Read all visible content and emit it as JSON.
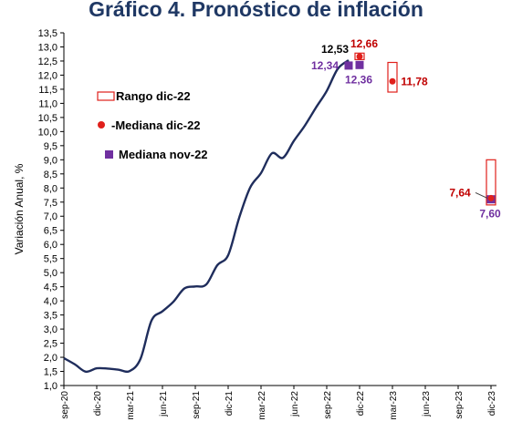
{
  "chart_data": {
    "type": "line",
    "title": "Gráfico 4. Pronóstico de inflación",
    "ylabel": "Variación Anual, %",
    "ylim": [
      1.0,
      13.5
    ],
    "yticks": [
      "1,0",
      "1,5",
      "2,0",
      "2,5",
      "3,0",
      "3,5",
      "4,0",
      "4,5",
      "5,0",
      "5,5",
      "6,0",
      "6,5",
      "7,0",
      "7,5",
      "8,0",
      "8,5",
      "9,0",
      "9,5",
      "10,0",
      "10,5",
      "11,0",
      "11,5",
      "12,0",
      "12,5",
      "13,0",
      "13,5"
    ],
    "xticks": [
      "sep-20",
      "dic-20",
      "mar-21",
      "jun-21",
      "sep-21",
      "dic-21",
      "mar-22",
      "jun-22",
      "sep-22",
      "dic-22",
      "mar-23",
      "jun-23",
      "sep-23",
      "dic-23"
    ],
    "grid": false,
    "legend_position": "upper-left",
    "legend": {
      "range": "Rango dic-22",
      "median_dec": "-Mediana dic-22",
      "median_nov": "Mediana nov-22"
    },
    "colors": {
      "line": "#1f2d5c",
      "range": "#e0201b",
      "median_dec": "#e0201b",
      "median_nov": "#7030a0",
      "label_dark": "#000000",
      "label_red": "#c00000",
      "label_purple": "#7030a0"
    },
    "series": [
      {
        "x": [
          "sep-20",
          "oct-20",
          "nov-20",
          "dic-20",
          "ene-21",
          "feb-21",
          "mar-21",
          "abr-21",
          "may-21",
          "jun-21",
          "jul-21",
          "ago-21",
          "sep-21",
          "oct-21",
          "nov-21",
          "dic-21",
          "ene-22",
          "feb-22",
          "mar-22",
          "abr-22",
          "may-22",
          "jun-22",
          "jul-22",
          "ago-22",
          "sep-22",
          "oct-22",
          "nov-22"
        ],
        "values": [
          1.97,
          1.75,
          1.49,
          1.61,
          1.6,
          1.56,
          1.51,
          1.95,
          3.3,
          3.63,
          3.97,
          4.44,
          4.51,
          4.58,
          5.26,
          5.62,
          6.94,
          8.01,
          8.53,
          9.23,
          9.07,
          9.67,
          10.21,
          10.84,
          11.44,
          12.22,
          12.53
        ]
      }
    ],
    "median_nov22": [
      {
        "x": "nov-22",
        "value": 12.34,
        "label": "12,34"
      },
      {
        "x": "dic-22",
        "value": 12.36,
        "label": "12,36"
      },
      {
        "x": "dic-23",
        "value": 7.6,
        "label": "7,60"
      }
    ],
    "median_dic22": [
      {
        "x": "dic-22",
        "value": 12.66,
        "label": "12,66"
      },
      {
        "x": "mar-23",
        "value": 11.78,
        "label": "11,78"
      },
      {
        "x": "dic-23",
        "value": 7.64,
        "label": "7,64"
      }
    ],
    "range_dic22": [
      {
        "x": "dic-22",
        "low": 12.55,
        "high": 12.78
      },
      {
        "x": "mar-23",
        "low": 11.4,
        "high": 12.45
      },
      {
        "x": "dic-23",
        "low": 7.4,
        "high": 9.0
      }
    ],
    "last_value_label": {
      "x": "nov-22",
      "value": 12.53,
      "label": "12,53"
    }
  }
}
